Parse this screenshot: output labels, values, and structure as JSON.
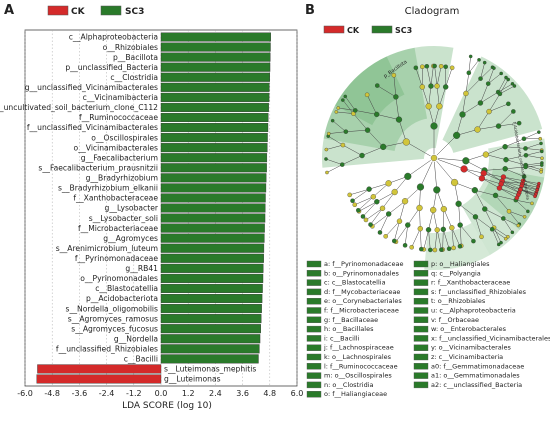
{
  "panel_a": {
    "letter": "A",
    "legend": [
      {
        "name": "CK",
        "color": "#d42a2a"
      },
      {
        "name": "SC3",
        "color": "#2a7a2a"
      }
    ]
  },
  "panel_b": {
    "letter": "B",
    "title": "Cladogram",
    "legend": [
      {
        "name": "CK",
        "color": "#d42a2a"
      },
      {
        "name": "SC3",
        "color": "#2a7a2a"
      }
    ],
    "ring_labels": [
      "p_Bacillota",
      "f_Acidobacteriota_unclassified_Bacteria"
    ],
    "key": [
      [
        "a: f__Pyrinomonadaceae",
        "p: o__Haliangiales"
      ],
      [
        "b: o__Pyrinomonadales",
        "q: c__Polyangia"
      ],
      [
        "c: c__Blastocatellia",
        "r: f__Xanthobacteraceae"
      ],
      [
        "d: f__Mycobacteriaceae",
        "s: f__unclassified_Rhizobiales"
      ],
      [
        "e: o__Corynebacteriales",
        "t: o__Rhizobiales"
      ],
      [
        "f: f__Microbacteriaceae",
        "u: c__Alphaproteobacteria"
      ],
      [
        "g: f__Bacillaceae",
        "v: f__Orbaceae"
      ],
      [
        "h: o__Bacillales",
        "w: o__Enterobacterales"
      ],
      [
        "i: c__Bacilli",
        "x: f__unclassified_Vicinamibacterales"
      ],
      [
        "j: f__Lachnospiraceae",
        "y: o__Vicinamibacterales"
      ],
      [
        "k: o__Lachnospirales",
        "z: c__Vicinamibacteria"
      ],
      [
        "l: f__Ruminococcaceae",
        "a0: f__Gemmatimonadaceae"
      ],
      [
        "m: o__Oscillospirales",
        "a1: o__Gemmatimonadales"
      ],
      [
        "n: o__Clostridia",
        "a2: c__unclassified_Bacteria"
      ],
      [
        "o: f__Haliangiaceae",
        ""
      ]
    ]
  },
  "chart_data": {
    "type": "bar",
    "orientation": "horizontal",
    "xlabel": "LDA SCORE (log 10)",
    "xlim": [
      -6.0,
      6.0
    ],
    "xticks": [
      -6.0,
      -4.8,
      -3.6,
      -2.4,
      -1.2,
      0.0,
      1.2,
      2.4,
      3.6,
      4.8,
      6.0
    ],
    "grid": true,
    "legend_position": "top",
    "categories": [
      "c__Alphaproteobacteria",
      "o__Rhizobiales",
      "p__Bacillota",
      "p__unclassified_Bacteria",
      "c__Clostridia",
      "g__unclassified_Vicinamibacterales",
      "c__Vicinamibacteria",
      "s__uncultivated_soil_bacterium_clone_C112",
      "f__Ruminococcaceae",
      "f__unclassified_Vicinamibacterales",
      "o__Oscillospirales",
      "o__Vicinamibacterales",
      "g__Faecalibacterium",
      "s__Faecalibacterium_prausnitzii",
      "g__Bradyrhizobium",
      "s__Bradyrhizobium_elkanii",
      "f__Xanthobacteraceae",
      "g__Lysobacter",
      "s__Lysobacter_soli",
      "f__Microbacteriaceae",
      "g__Agromyces",
      "s__Arenimicrobium_luteum",
      "f__Pyrinomonadaceae",
      "g__RB41",
      "o__Pyrinomonadales",
      "c__Blastocatellia",
      "p__Acidobacteriota",
      "s__Nordella_oligomobilis",
      "s__Agromyces_ramosus",
      "s__Agromyces_fucosus",
      "g__Nordella",
      "f__unclassified_Rhizobiales",
      "c__Bacilli",
      "s__Luteimonas_mephitis",
      "g__Luteimonas"
    ],
    "series": [
      {
        "name": "SC3",
        "color": "#2a7a2a",
        "values": [
          4.84,
          4.83,
          4.82,
          4.81,
          4.8,
          4.78,
          4.77,
          4.75,
          4.73,
          4.72,
          4.7,
          4.69,
          4.67,
          4.66,
          4.64,
          4.63,
          4.61,
          4.6,
          4.59,
          4.57,
          4.56,
          4.54,
          4.53,
          4.51,
          4.5,
          4.48,
          4.46,
          4.44,
          4.42,
          4.4,
          4.37,
          4.34,
          4.3,
          null,
          null
        ]
      },
      {
        "name": "CK",
        "color": "#d42a2a",
        "values": [
          null,
          null,
          null,
          null,
          null,
          null,
          null,
          null,
          null,
          null,
          null,
          null,
          null,
          null,
          null,
          null,
          null,
          null,
          null,
          null,
          null,
          null,
          null,
          null,
          null,
          null,
          null,
          null,
          null,
          null,
          null,
          null,
          null,
          -5.45,
          -5.48
        ]
      }
    ]
  }
}
